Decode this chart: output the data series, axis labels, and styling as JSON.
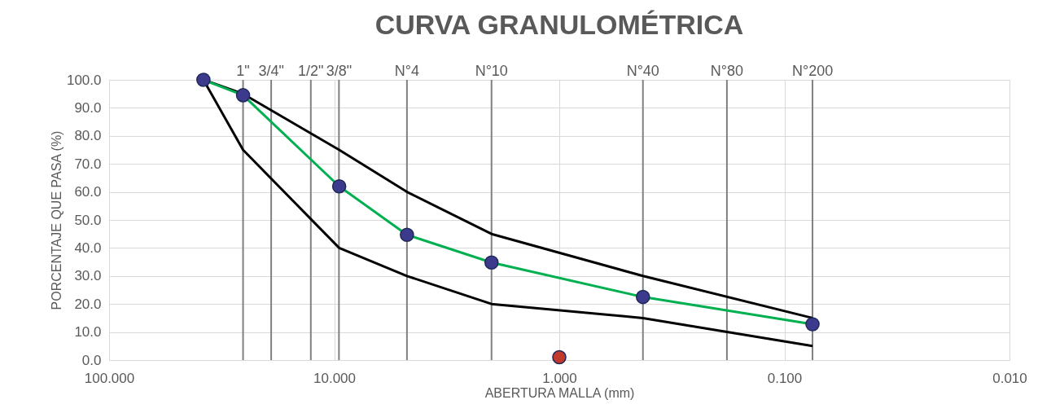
{
  "chart_data": {
    "type": "line",
    "title": "CURVA GRANULOMÉTRICA",
    "xlabel": "ABERTURA MALLA (mm)",
    "ylabel": "PORCENTAJE QUE PASA (%)",
    "log": "x",
    "grid": true,
    "legend": false,
    "xlim": [
      100,
      0.01
    ],
    "xticks": [
      {
        "value": 100,
        "label": "100.000"
      },
      {
        "value": 10,
        "label": "10.000"
      },
      {
        "value": 1,
        "label": "1.000"
      },
      {
        "value": 0.1,
        "label": "0.100"
      },
      {
        "value": 0.01,
        "label": "0.010"
      }
    ],
    "ylim": [
      0,
      100
    ],
    "yticks": [
      {
        "value": 0,
        "label": "0.0"
      },
      {
        "value": 10,
        "label": "10.0"
      },
      {
        "value": 20,
        "label": "20.0"
      },
      {
        "value": 30,
        "label": "30.0"
      },
      {
        "value": 40,
        "label": "40.0"
      },
      {
        "value": 50,
        "label": "50.0"
      },
      {
        "value": 60,
        "label": "60.0"
      },
      {
        "value": 70,
        "label": "70.0"
      },
      {
        "value": 80,
        "label": "80.0"
      },
      {
        "value": 90,
        "label": "90.0"
      },
      {
        "value": 100,
        "label": "100.0"
      }
    ],
    "series": [
      {
        "color": "#000000",
        "marker": "none",
        "x": [
          38.1,
          25.4,
          9.5,
          4.75,
          2.0,
          0.425,
          0.075
        ],
        "values": [
          100,
          95,
          75,
          60,
          45,
          30,
          15
        ]
      },
      {
        "color": "#000000",
        "marker": "none",
        "x": [
          38.1,
          25.4,
          9.5,
          4.75,
          2.0,
          0.425,
          0.075
        ],
        "values": [
          100,
          75,
          40,
          30,
          20,
          15,
          5
        ]
      },
      {
        "color": "#00b050",
        "marker": "none",
        "x": [
          38.1,
          25.4,
          9.5,
          4.75,
          2.0,
          0.425,
          0.075
        ],
        "values": [
          100,
          94.5,
          62,
          44.7,
          34.8,
          22.5,
          12.8
        ]
      },
      {
        "type": "scatter",
        "color": "#3c3a8c",
        "marker": "circle",
        "x": [
          38.1,
          25.4,
          9.5,
          4.75,
          2.0,
          0.425,
          0.075
        ],
        "values": [
          100,
          94.5,
          62,
          44.7,
          34.8,
          22.5,
          12.8
        ]
      },
      {
        "type": "scatter",
        "color": "#c0392b",
        "marker": "circle",
        "x": [
          1.0
        ],
        "values": [
          1
        ]
      }
    ],
    "ref_lines": [
      {
        "axis": "x",
        "value": 25.4,
        "color": "#808080"
      },
      {
        "axis": "x",
        "value": 19.05,
        "color": "#808080"
      },
      {
        "axis": "x",
        "value": 12.7,
        "color": "#808080"
      },
      {
        "axis": "x",
        "value": 9.525,
        "color": "#808080"
      },
      {
        "axis": "x",
        "value": 4.75,
        "color": "#808080"
      },
      {
        "axis": "x",
        "value": 2.0,
        "color": "#808080"
      },
      {
        "axis": "x",
        "value": 0.425,
        "color": "#808080"
      },
      {
        "axis": "x",
        "value": 0.18,
        "color": "#808080"
      },
      {
        "axis": "x",
        "value": 0.075,
        "color": "#808080"
      }
    ],
    "annotations": [
      {
        "text": "1\"",
        "x": 25.4,
        "y": 100
      },
      {
        "text": "3/4\"",
        "x": 19.05,
        "y": 100
      },
      {
        "text": "1/2\"",
        "x": 12.7,
        "y": 100
      },
      {
        "text": "3/8\"",
        "x": 9.525,
        "y": 100
      },
      {
        "text": "N°4",
        "x": 4.75,
        "y": 100
      },
      {
        "text": "N°10",
        "x": 2.0,
        "y": 100
      },
      {
        "text": "N°40",
        "x": 0.425,
        "y": 100
      },
      {
        "text": "N°80",
        "x": 0.18,
        "y": 100
      },
      {
        "text": "N°200",
        "x": 0.075,
        "y": 100
      }
    ]
  }
}
